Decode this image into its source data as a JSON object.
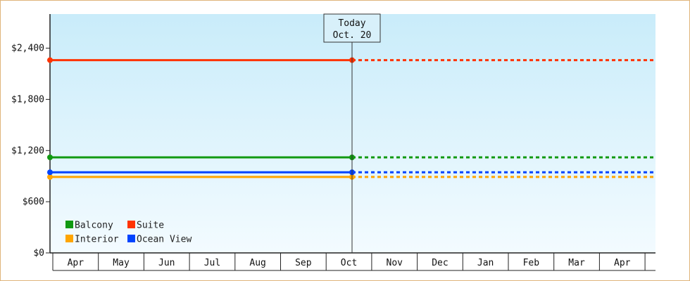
{
  "chart_data": {
    "type": "line",
    "title": "",
    "xlabel": "",
    "ylabel": "",
    "x_ticks": [
      "Apr",
      "May",
      "Jun",
      "Jul",
      "Aug",
      "Sep",
      "Oct",
      "Nov",
      "Dec",
      "Jan",
      "Feb",
      "Mar",
      "Apr"
    ],
    "y_ticks": [
      {
        "value": 0,
        "label": "$0"
      },
      {
        "value": 600,
        "label": "$600"
      },
      {
        "value": 1200,
        "label": "$1,200"
      },
      {
        "value": 1800,
        "label": "$1,800"
      },
      {
        "value": 2400,
        "label": "$2,400"
      }
    ],
    "ylim": [
      0,
      2800
    ],
    "today_marker": {
      "line1": "Today",
      "line2": "Oct. 20"
    },
    "grid": false,
    "legend_position": "bottom-left",
    "series": [
      {
        "name": "Balcony",
        "color": "#119911",
        "value": 1120
      },
      {
        "name": "Suite",
        "color": "#ff3300",
        "value": 2260
      },
      {
        "name": "Interior",
        "color": "#ffa500",
        "value": 890
      },
      {
        "name": "Ocean View",
        "color": "#0044ff",
        "value": 945
      }
    ],
    "legend_order": [
      "Balcony",
      "Suite",
      "Interior",
      "Ocean View"
    ],
    "colors": {
      "plot_top": "#c9ecfa",
      "plot_bottom": "#f3fbff",
      "frame_border": "#e0b47a"
    }
  }
}
